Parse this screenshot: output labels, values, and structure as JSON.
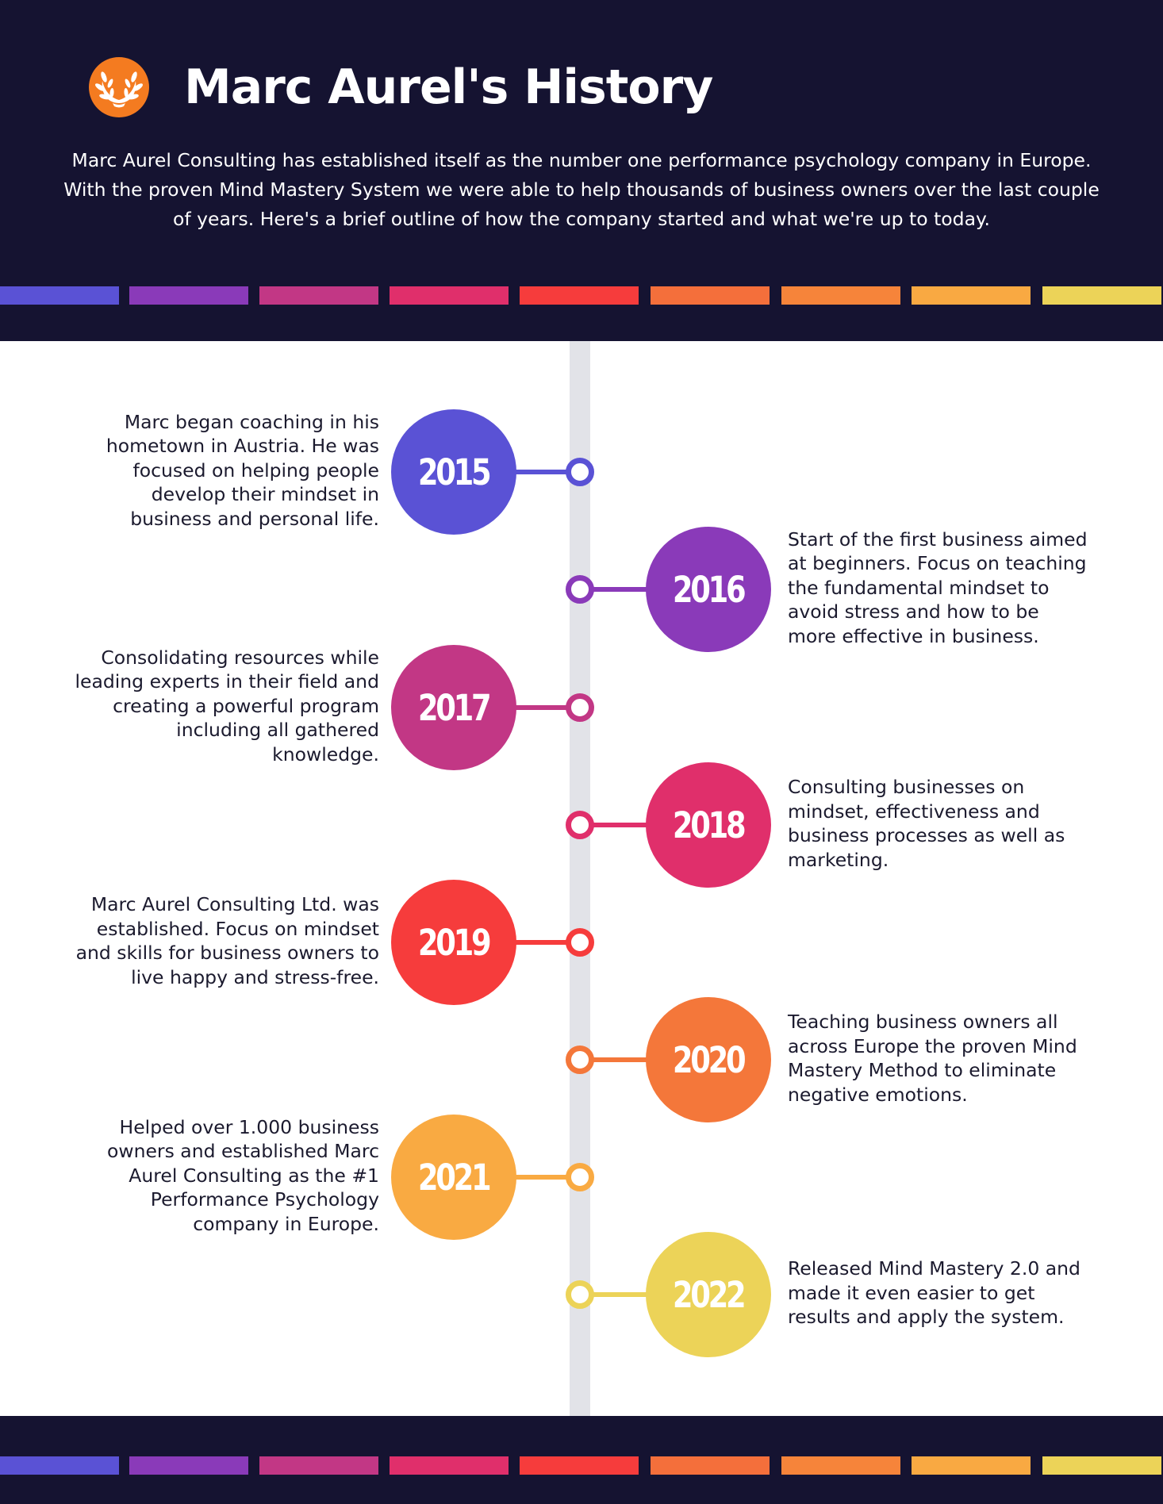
{
  "header": {
    "title": "Marc Aurel's History",
    "intro_lines": [
      "Marc Aurel Consulting has established itself as the number one performance psychology company in Europe.",
      "With the proven Mind Mastery System we were able to help thousands of business owners over the last couple",
      "of years. Here's a brief outline of how the company started and what we're up to today."
    ],
    "logo_icon": "laurel-wreath-icon",
    "logo_color": "#f47b20",
    "background_color": "#151331"
  },
  "palette": [
    "#5a52d5",
    "#8a3ab9",
    "#c23785",
    "#e02f6b",
    "#f63c3c",
    "#f46f3b",
    "#f6843a",
    "#f9a942",
    "#ecd358"
  ],
  "timeline": [
    {
      "year": "2015",
      "side": "left",
      "color": "#5a52d5",
      "lines": [
        "Marc began coaching in his",
        "hometown in Austria. He was",
        "focused on helping people",
        "develop their mindset in",
        "business and personal life."
      ]
    },
    {
      "year": "2016",
      "side": "right",
      "color": "#8a3ab9",
      "lines": [
        "Start of the first business aimed",
        "at beginners. Focus on teaching",
        "the fundamental mindset to",
        "avoid stress and how to be",
        "more effective in business."
      ]
    },
    {
      "year": "2017",
      "side": "left",
      "color": "#c23785",
      "lines": [
        "Consolidating resources while",
        "leading experts in their field and",
        "creating a powerful program",
        "including all gathered",
        "knowledge."
      ]
    },
    {
      "year": "2018",
      "side": "right",
      "color": "#e02f6b",
      "lines": [
        "Consulting businesses on",
        "mindset, effectiveness and",
        "business processes as well as",
        "marketing."
      ]
    },
    {
      "year": "2019",
      "side": "left",
      "color": "#f63c3c",
      "lines": [
        "Marc Aurel Consulting Ltd. was",
        "established. Focus on mindset",
        "and skills for business owners to",
        "live happy and stress-free."
      ]
    },
    {
      "year": "2020",
      "side": "right",
      "color": "#f4773a",
      "lines": [
        "Teaching business owners all",
        "across Europe the proven Mind",
        "Mastery Method to eliminate",
        "negative emotions."
      ]
    },
    {
      "year": "2021",
      "side": "left",
      "color": "#f9aa42",
      "lines": [
        "Helped over 1.000 business",
        "owners and established Marc",
        "Aurel Consulting as the #1",
        "Performance Psychology",
        "company in Europe."
      ]
    },
    {
      "year": "2022",
      "side": "right",
      "color": "#ecd358",
      "lines": [
        "Released Mind Mastery 2.0 and",
        "made it even easier to get",
        "results and apply the system."
      ]
    }
  ]
}
